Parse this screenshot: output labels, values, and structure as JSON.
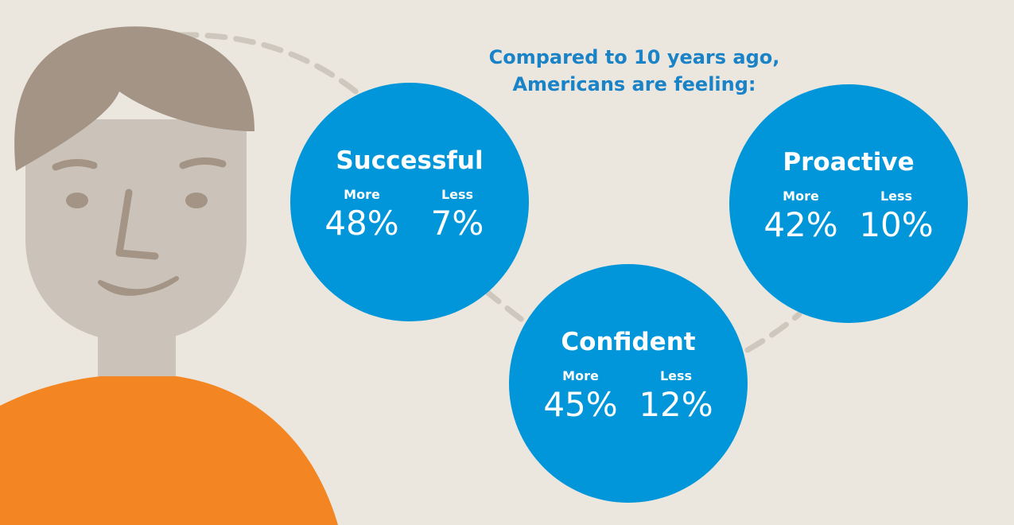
{
  "headline": {
    "line1": "Compared to 10 years ago,",
    "line2": "Americans are feeling:"
  },
  "bubbles": [
    {
      "title": "Successful",
      "more_label": "More",
      "more_value": "48%",
      "less_label": "Less",
      "less_value": "7%"
    },
    {
      "title": "Confident",
      "more_label": "More",
      "more_value": "45%",
      "less_label": "Less",
      "less_value": "12%"
    },
    {
      "title": "Proactive",
      "more_label": "More",
      "more_value": "42%",
      "less_label": "Less",
      "less_value": "10%"
    }
  ],
  "colors": {
    "background": "#ece7de",
    "bubble": "#0096d9",
    "headline": "#1a83c8",
    "hair": "#a39486",
    "skin": "#cbc3b9",
    "shirt": "#f38522",
    "dash": "#cdc7bd"
  }
}
